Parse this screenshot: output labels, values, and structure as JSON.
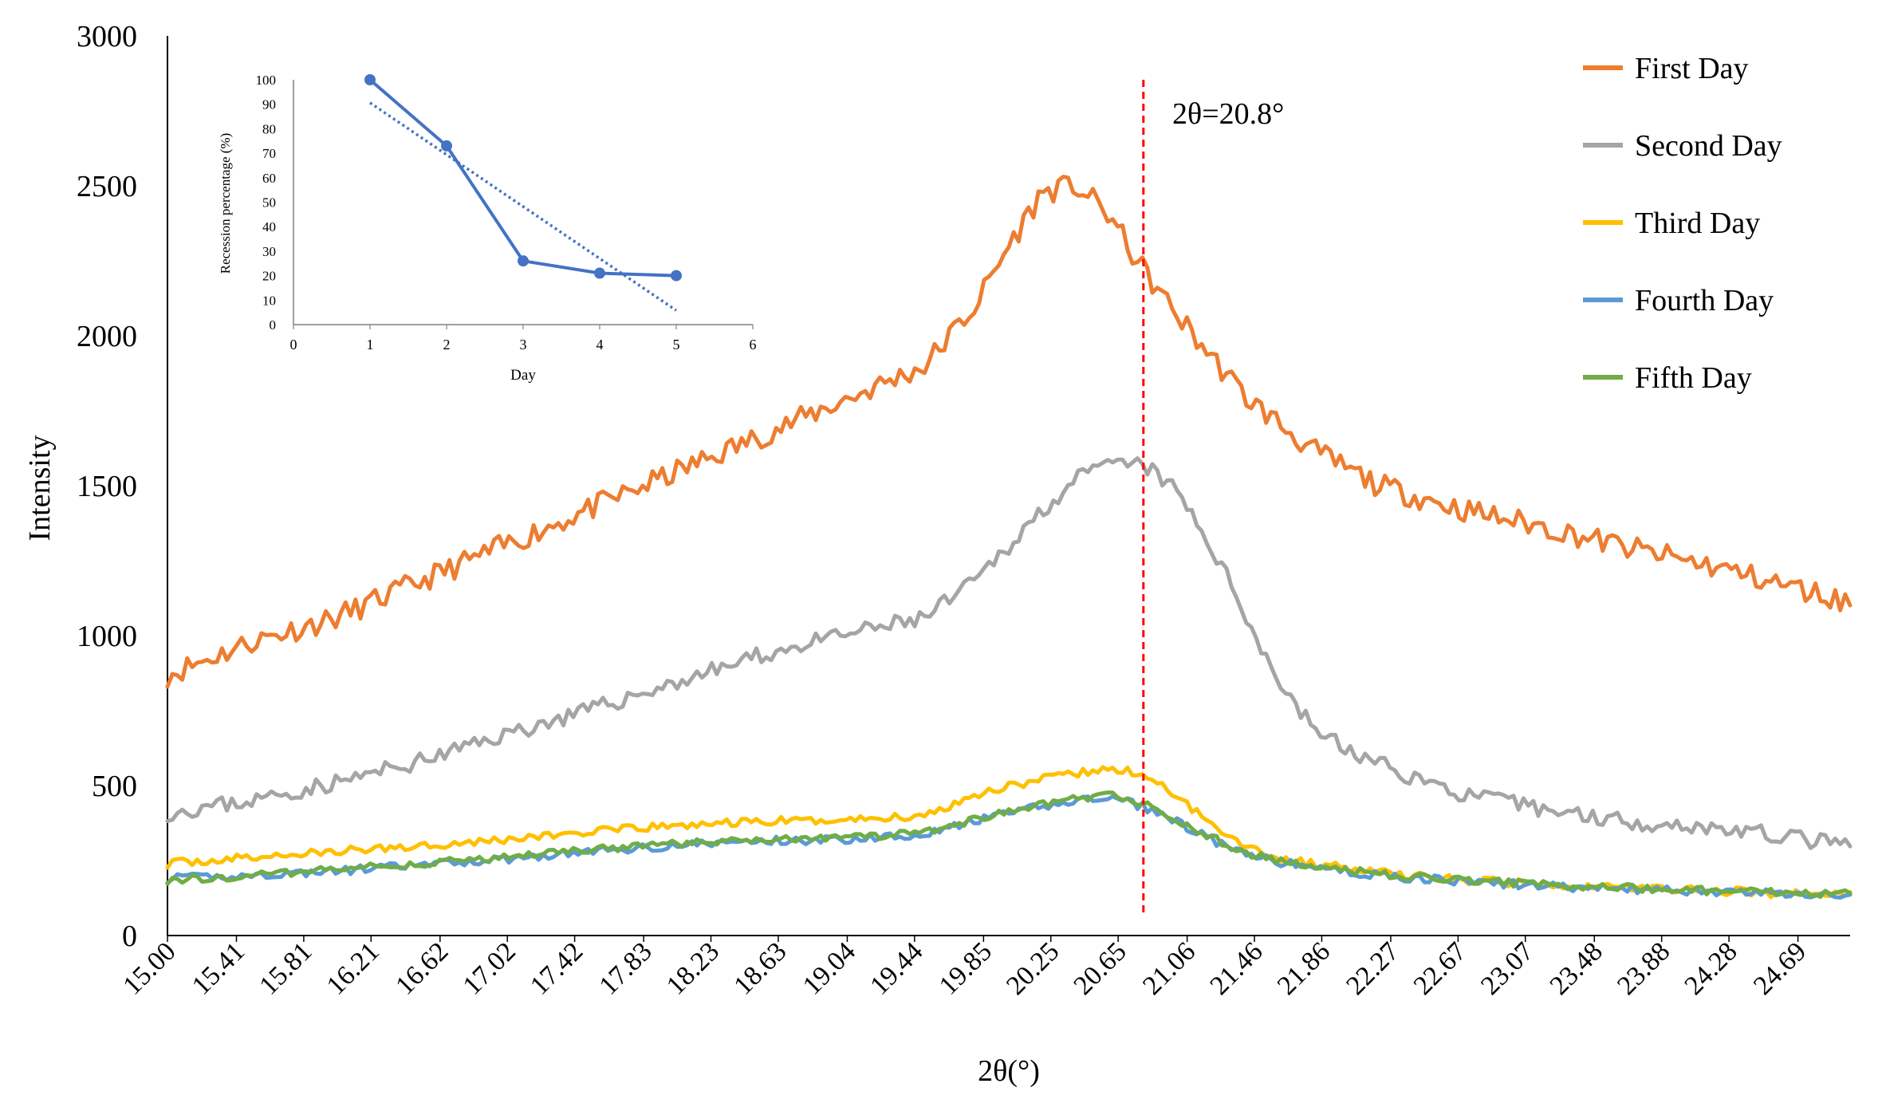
{
  "chart_data": [
    {
      "type": "line",
      "title": "",
      "xlabel": "2θ(°)",
      "ylabel": "Intensity",
      "xlim": [
        15.0,
        25.0
      ],
      "ylim": [
        0,
        3000
      ],
      "y_ticks": [
        "0",
        "500",
        "1000",
        "1500",
        "2000",
        "2500",
        "3000"
      ],
      "x_tick_values": [
        15.0,
        15.41,
        15.81,
        16.21,
        16.62,
        17.02,
        17.42,
        17.83,
        18.23,
        18.63,
        19.04,
        19.44,
        19.85,
        20.25,
        20.65,
        21.06,
        21.46,
        21.86,
        22.27,
        22.67,
        23.07,
        23.48,
        23.88,
        24.28,
        24.69
      ],
      "x_tick_labels": [
        "15.00",
        "15.41",
        "15.81",
        "16.21",
        "16.62",
        "17.02",
        "17.42",
        "17.83",
        "18.23",
        "18.63",
        "19.04",
        "19.44",
        "19.85",
        "20.25",
        "20.65",
        "21.06",
        "21.46",
        "21.86",
        "22.27",
        "22.67",
        "23.07",
        "23.48",
        "23.88",
        "24.28",
        "24.69"
      ],
      "annotation": {
        "x": 20.8,
        "label": "2θ=20.8°",
        "color": "#FF0000",
        "style": "dashed"
      },
      "legend_position": "top-right",
      "series": [
        {
          "name": "First Day",
          "color": "#ED7D31",
          "x": [
            15.0,
            15.5,
            16.0,
            16.5,
            17.0,
            17.5,
            18.0,
            18.5,
            19.0,
            19.5,
            19.8,
            20.0,
            20.2,
            20.4,
            20.6,
            20.75,
            20.9,
            21.1,
            21.4,
            21.8,
            22.2,
            22.7,
            23.2,
            23.7,
            24.2,
            24.6,
            25.0
          ],
          "values": [
            870,
            980,
            1060,
            1180,
            1300,
            1420,
            1540,
            1660,
            1780,
            1900,
            2100,
            2300,
            2480,
            2500,
            2400,
            2260,
            2140,
            2000,
            1800,
            1620,
            1500,
            1420,
            1360,
            1290,
            1230,
            1170,
            1110
          ]
        },
        {
          "name": "Second Day",
          "color": "#A5A5A5",
          "x": [
            15.0,
            15.5,
            16.0,
            16.5,
            17.0,
            17.5,
            18.0,
            18.5,
            19.0,
            19.5,
            19.8,
            20.0,
            20.2,
            20.4,
            20.6,
            20.8,
            21.0,
            21.2,
            21.4,
            21.6,
            21.8,
            22.0,
            22.3,
            22.7,
            23.2,
            23.7,
            24.2,
            24.6,
            25.0
          ],
          "values": [
            410,
            450,
            510,
            580,
            670,
            750,
            840,
            930,
            1000,
            1060,
            1180,
            1300,
            1420,
            1520,
            1570,
            1570,
            1480,
            1300,
            1080,
            850,
            700,
            620,
            550,
            470,
            420,
            380,
            360,
            330,
            300
          ]
        },
        {
          "name": "Third Day",
          "color": "#FFC000",
          "x": [
            15.0,
            15.5,
            16.0,
            16.5,
            17.0,
            17.5,
            18.0,
            18.5,
            19.0,
            19.5,
            19.8,
            20.0,
            20.2,
            20.4,
            20.6,
            20.8,
            21.0,
            21.2,
            21.4,
            21.6,
            21.8,
            22.2,
            22.7,
            23.2,
            23.7,
            24.2,
            24.6,
            25.0
          ],
          "values": [
            240,
            260,
            280,
            300,
            320,
            345,
            365,
            380,
            385,
            400,
            470,
            500,
            520,
            540,
            555,
            540,
            460,
            380,
            300,
            260,
            240,
            210,
            185,
            170,
            160,
            150,
            140,
            135
          ]
        },
        {
          "name": "Fourth Day",
          "color": "#5B9BD5",
          "x": [
            15.0,
            15.5,
            16.0,
            16.5,
            17.0,
            17.5,
            18.0,
            18.5,
            19.0,
            19.5,
            19.8,
            20.0,
            20.2,
            20.4,
            20.6,
            20.8,
            21.0,
            21.2,
            21.4,
            21.6,
            21.8,
            22.2,
            22.7,
            23.2,
            23.7,
            24.2,
            24.6,
            25.0
          ],
          "values": [
            190,
            200,
            215,
            235,
            255,
            280,
            300,
            315,
            320,
            340,
            380,
            410,
            430,
            450,
            460,
            430,
            380,
            320,
            270,
            245,
            230,
            200,
            180,
            165,
            155,
            145,
            140,
            135
          ]
        },
        {
          "name": "Fifth Day",
          "color": "#70AD47",
          "x": [
            15.0,
            15.5,
            16.0,
            16.5,
            17.0,
            17.5,
            18.0,
            18.5,
            19.0,
            19.5,
            19.8,
            20.0,
            20.2,
            20.4,
            20.6,
            20.8,
            21.0,
            21.2,
            21.4,
            21.6,
            21.8,
            22.2,
            22.7,
            23.2,
            23.7,
            24.2,
            24.6,
            25.0
          ],
          "values": [
            185,
            200,
            220,
            240,
            260,
            285,
            305,
            320,
            325,
            345,
            385,
            415,
            435,
            455,
            470,
            440,
            385,
            330,
            275,
            250,
            235,
            205,
            185,
            170,
            158,
            148,
            142,
            138
          ]
        }
      ]
    },
    {
      "type": "line",
      "title": "",
      "xlabel": "Day",
      "ylabel": "Recession percentage (%)",
      "xlim": [
        0,
        6
      ],
      "ylim": [
        0,
        100
      ],
      "x_ticks": [
        "0",
        "1",
        "2",
        "3",
        "4",
        "5",
        "6"
      ],
      "y_ticks": [
        "0",
        "10",
        "20",
        "30",
        "40",
        "50",
        "60",
        "70",
        "80",
        "90",
        "100"
      ],
      "legend_position": "none",
      "series": [
        {
          "name": "Recession percentage",
          "color": "#4472C4",
          "marker": "circle",
          "x": [
            1,
            2,
            3,
            4,
            5
          ],
          "values": [
            100,
            73,
            26,
            21,
            20
          ]
        },
        {
          "name": "Linear trend",
          "color": "#4472C4",
          "style": "dotted",
          "x": [
            1,
            5
          ],
          "values": [
            90.6,
            5.8
          ]
        }
      ]
    }
  ]
}
